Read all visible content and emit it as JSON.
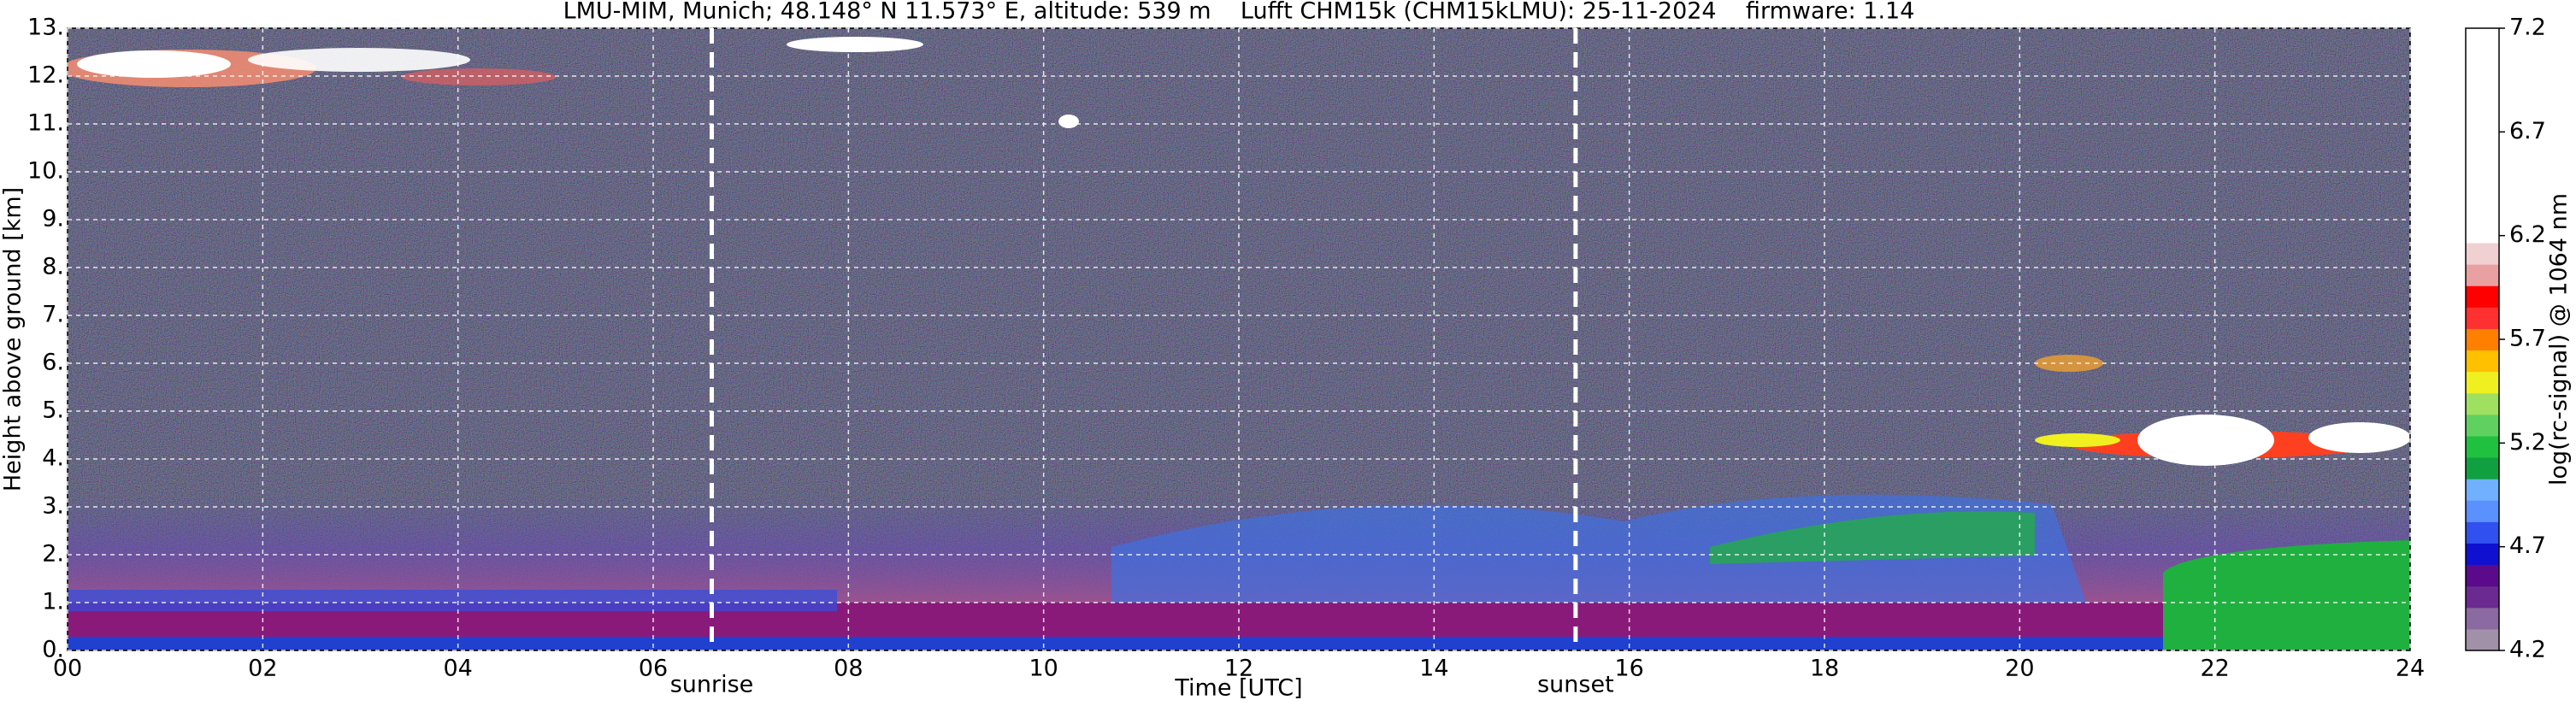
{
  "chart_data": {
    "type": "heatmap",
    "title": "LMU-MIM, Munich; 48.148° N 11.573° E, altitude: 539 m    Lufft CHM15k (CHM15kLMU): 25-11-2024    firmware: 1.14",
    "xlabel": "Time [UTC]",
    "ylabel": "Height above ground [km]",
    "xlim": [
      0,
      24
    ],
    "xticks": [
      {
        "value": 0,
        "label": "00"
      },
      {
        "value": 2,
        "label": "02"
      },
      {
        "value": 4,
        "label": "04"
      },
      {
        "value": 6,
        "label": "06"
      },
      {
        "value": 8,
        "label": "08"
      },
      {
        "value": 10,
        "label": "10"
      },
      {
        "value": 12,
        "label": "12"
      },
      {
        "value": 14,
        "label": "14"
      },
      {
        "value": 16,
        "label": "16"
      },
      {
        "value": 18,
        "label": "18"
      },
      {
        "value": 20,
        "label": "20"
      },
      {
        "value": 22,
        "label": "22"
      },
      {
        "value": 24,
        "label": "24"
      }
    ],
    "ylim": [
      0,
      13
    ],
    "yticks": [
      {
        "value": 0,
        "label": "0."
      },
      {
        "value": 1,
        "label": "1."
      },
      {
        "value": 2,
        "label": "2."
      },
      {
        "value": 3,
        "label": "3."
      },
      {
        "value": 4,
        "label": "4."
      },
      {
        "value": 5,
        "label": "5."
      },
      {
        "value": 6,
        "label": "6."
      },
      {
        "value": 7,
        "label": "7."
      },
      {
        "value": 8,
        "label": "8."
      },
      {
        "value": 9,
        "label": "9."
      },
      {
        "value": 10,
        "label": "10."
      },
      {
        "value": 11,
        "label": "11."
      },
      {
        "value": 12,
        "label": "12."
      },
      {
        "value": 13,
        "label": "13."
      }
    ],
    "grid": true,
    "annotations": [
      {
        "text": "sunrise",
        "x": 6.6
      },
      {
        "text": "sunset",
        "x": 15.45
      }
    ],
    "colorbar": {
      "label": "log(rc-signal) @ 1064 nm",
      "lim": [
        4.2,
        7.2
      ],
      "ticks": [
        4.2,
        4.7,
        5.2,
        5.7,
        6.2,
        6.7,
        7.2
      ],
      "colors": [
        "#a090a8",
        "#8a6aa0",
        "#6a2a90",
        "#5a0a8a",
        "#1010d0",
        "#3050f0",
        "#5a90ff",
        "#70b0ff",
        "#10a040",
        "#20c040",
        "#60d060",
        "#a0e060",
        "#f0f020",
        "#ffc000",
        "#ff8000",
        "#ff3030",
        "#ff0000",
        "#e8a0a0",
        "#f0d0d0",
        "#ffffff",
        "#ffffff",
        "#ffffff",
        "#ffffff",
        "#ffffff",
        "#ffffff",
        "#ffffff",
        "#ffffff",
        "#ffffff",
        "#ffffff"
      ]
    }
  }
}
